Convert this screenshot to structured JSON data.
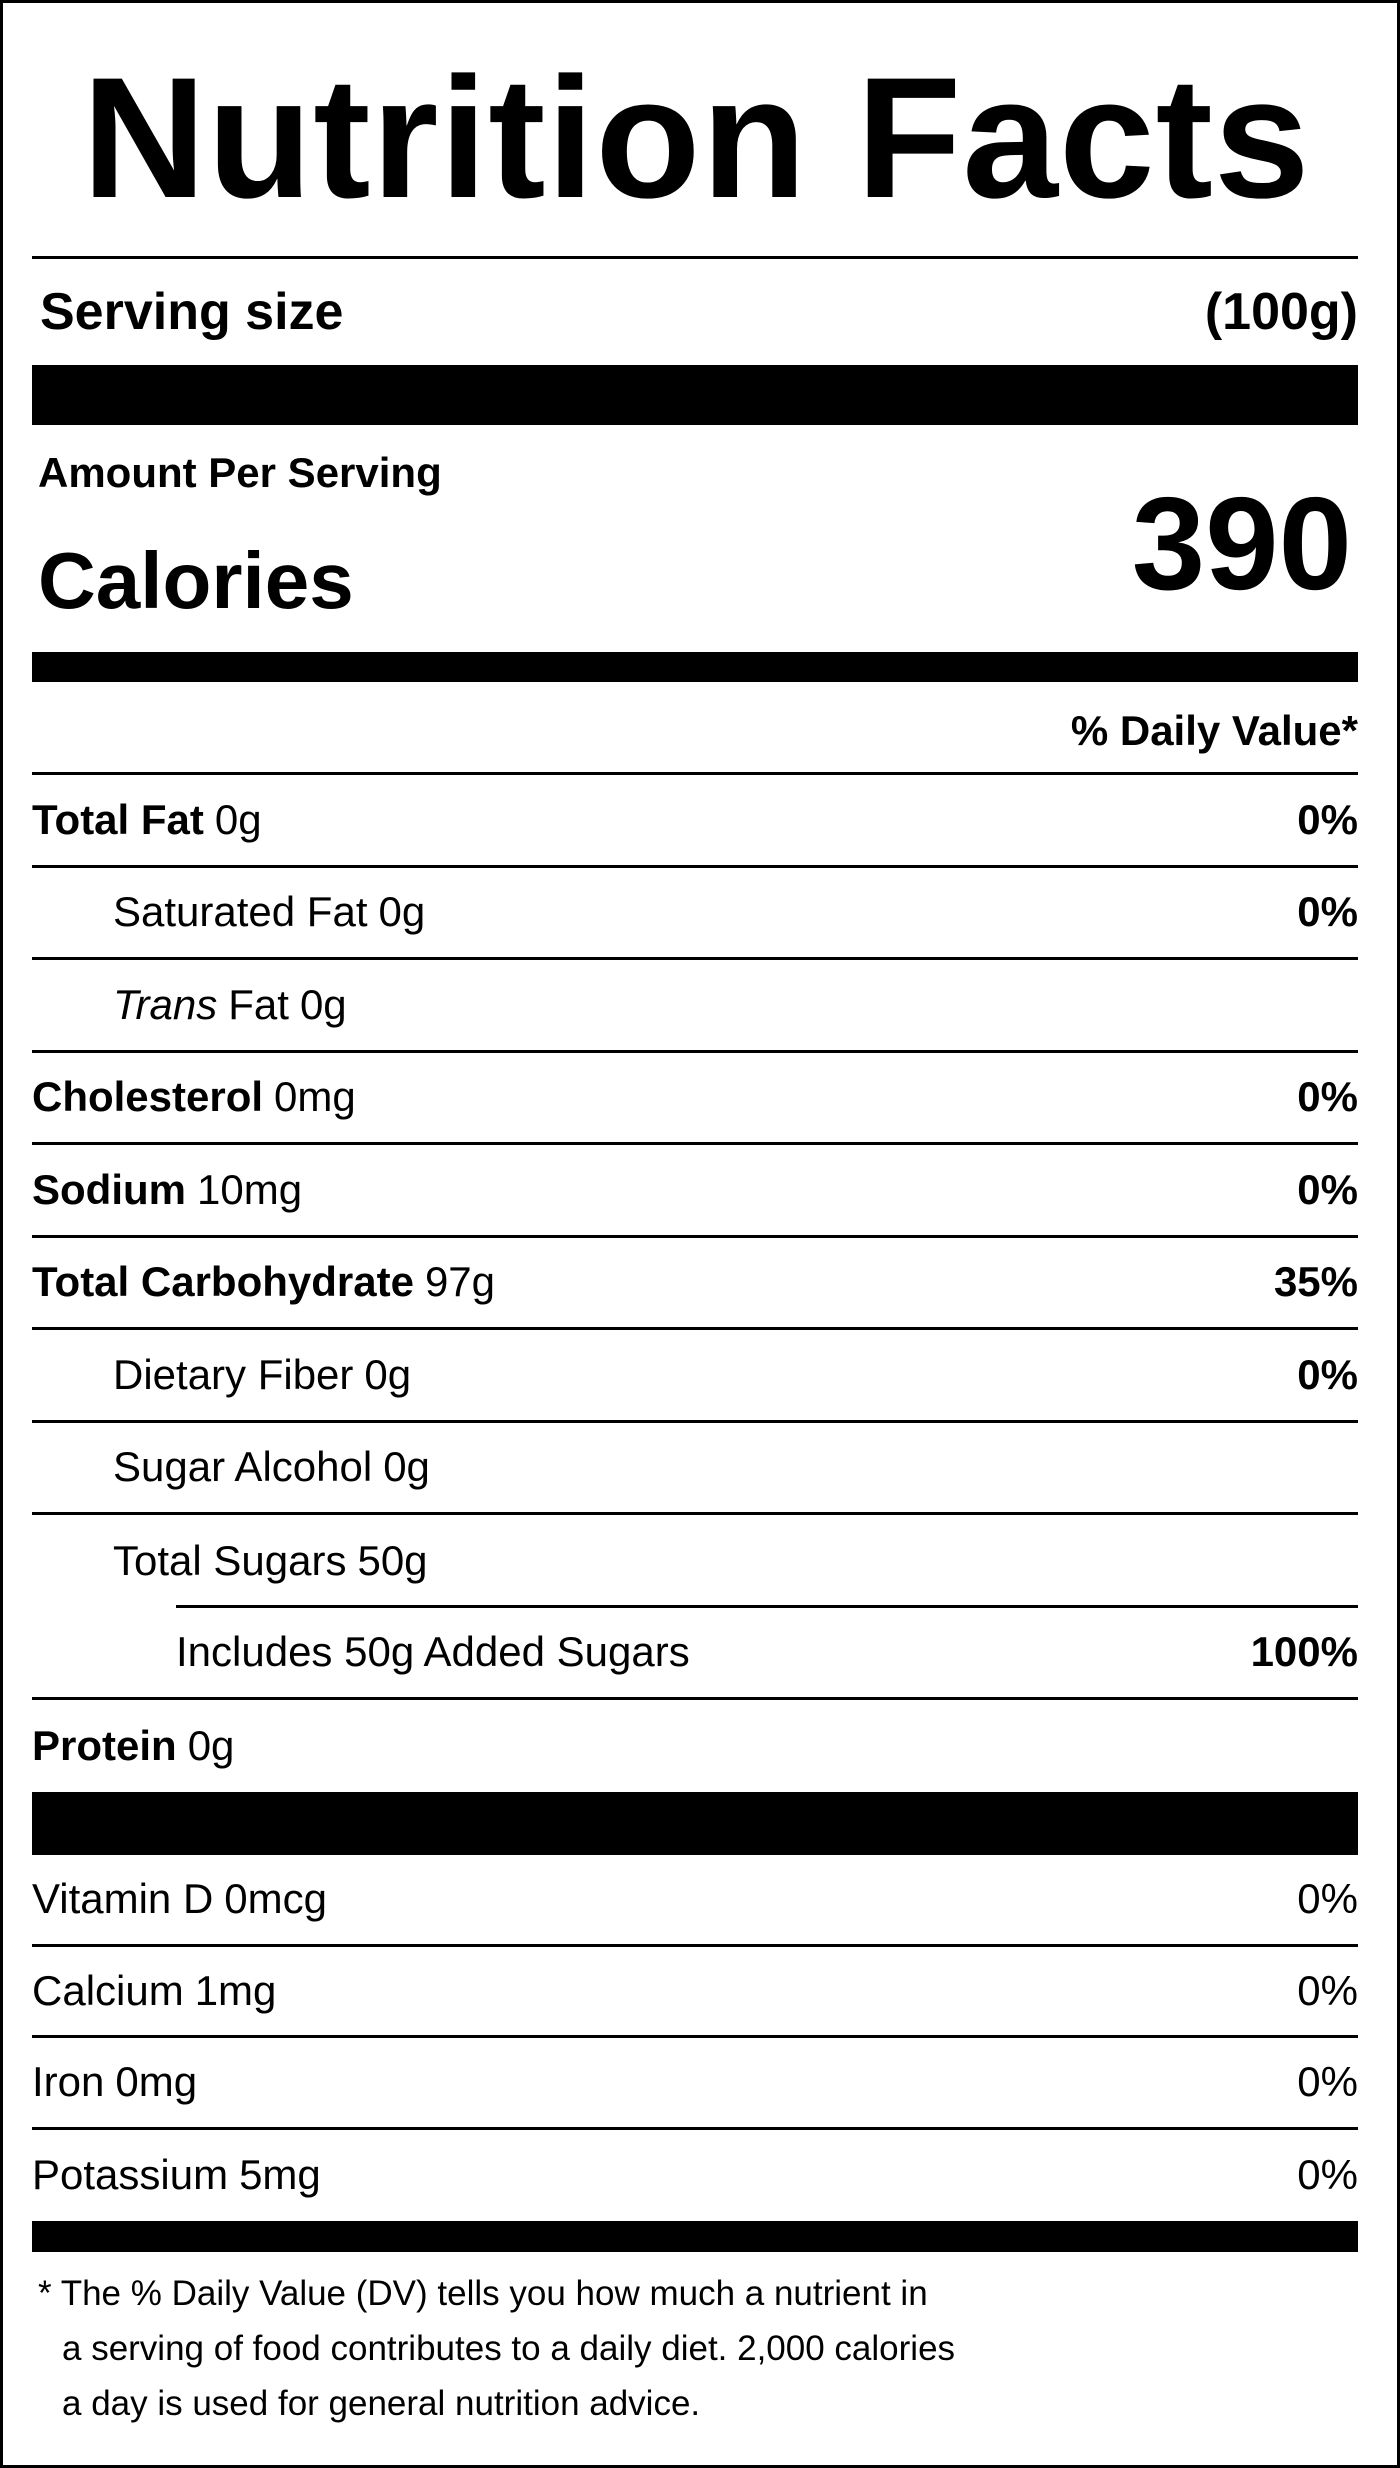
{
  "header": {
    "title": "Nutrition Facts"
  },
  "serving": {
    "label": "Serving size",
    "value": "(100g)"
  },
  "amount_per_serving": "Amount Per Serving",
  "calories": {
    "label": "Calories",
    "value": "390"
  },
  "daily_value_header": "% Daily Value*",
  "nutrients": [
    {
      "name": "Total Fat",
      "amount": "0g",
      "dv": "0%"
    },
    {
      "name": "Saturated Fat",
      "amount": "0g",
      "dv": "0%"
    },
    {
      "name_italic": "Trans",
      "name": "Fat",
      "amount": "0g"
    },
    {
      "name": "Cholesterol",
      "amount": "0mg",
      "dv": "0%"
    },
    {
      "name": "Sodium",
      "amount": "10mg",
      "dv": "0%"
    },
    {
      "name": "Total Carbohydrate",
      "amount": "97g",
      "dv": "35%"
    },
    {
      "name": "Dietary Fiber",
      "amount": "0g",
      "dv": "0%"
    },
    {
      "name": "Sugar Alcohol",
      "amount": "0g"
    },
    {
      "name": "Total Sugars",
      "amount": "50g"
    },
    {
      "name": "Includes 50g Added Sugars",
      "dv": "100%"
    },
    {
      "name": "Protein",
      "amount": "0g"
    }
  ],
  "vitamins": [
    {
      "name": "Vitamin D",
      "amount": "0mcg",
      "dv": "0%"
    },
    {
      "name": "Calcium",
      "amount": "1mg",
      "dv": "0%"
    },
    {
      "name": "Iron",
      "amount": "0mg",
      "dv": "0%"
    },
    {
      "name": "Potassium",
      "amount": "5mg",
      "dv": "0%"
    }
  ],
  "footnote": [
    "* The % Daily Value (DV) tells you how much a nutrient in",
    "a serving of food contributes to a daily diet. 2,000 calories",
    "a day is used for general nutrition advice."
  ]
}
